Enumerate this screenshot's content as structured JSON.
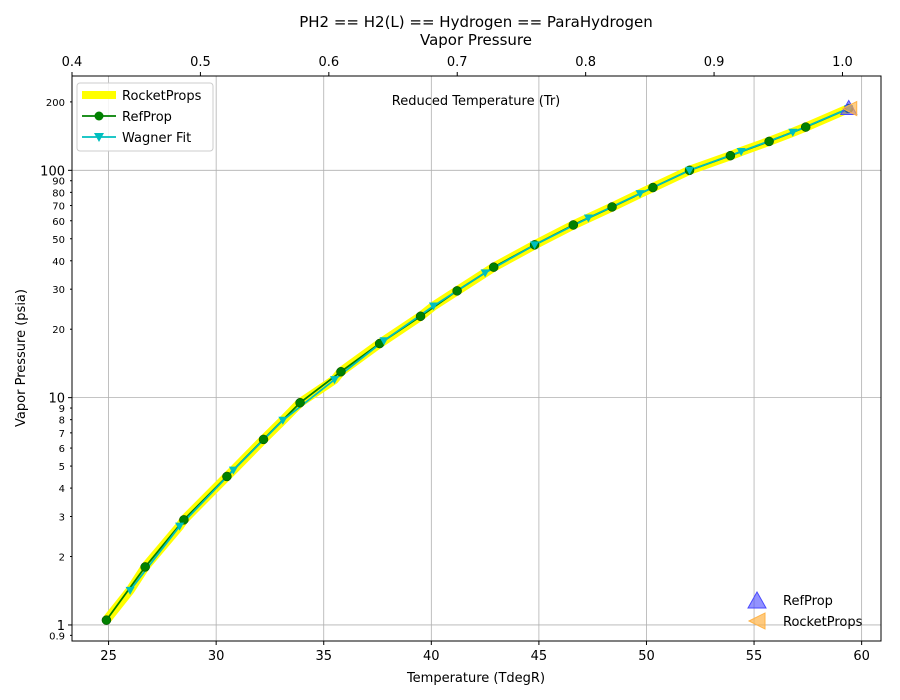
{
  "chart_data": {
    "type": "line",
    "title": "PH2 == H2(L) == Hydrogen == ParaHydrogen",
    "subtitle": "Vapor Pressure",
    "xlabel": "Temperature (TdegR)",
    "ylabel": "Vapor Pressure (psia)",
    "top_axis_label": "Reduced Temperature (Tr)",
    "xlim": [
      23.3,
      60.9
    ],
    "ylim": [
      0.85,
      260
    ],
    "yscale": "log",
    "top_axis_lim": [
      0.4,
      1.03
    ],
    "grid": true,
    "x_ticks": [
      {
        "v": 25,
        "label": "25"
      },
      {
        "v": 30,
        "label": "30"
      },
      {
        "v": 35,
        "label": "35"
      },
      {
        "v": 40,
        "label": "40"
      },
      {
        "v": 45,
        "label": "45"
      },
      {
        "v": 50,
        "label": "50"
      },
      {
        "v": 55,
        "label": "55"
      },
      {
        "v": 60,
        "label": "60"
      }
    ],
    "top_ticks": [
      {
        "v": 0.4,
        "label": "0.4"
      },
      {
        "v": 0.5,
        "label": "0.5"
      },
      {
        "v": 0.6,
        "label": "0.6"
      },
      {
        "v": 0.7,
        "label": "0.7"
      },
      {
        "v": 0.8,
        "label": "0.8"
      },
      {
        "v": 0.9,
        "label": "0.9"
      },
      {
        "v": 1.0,
        "label": "1.0"
      }
    ],
    "y_major_ticks": [
      {
        "v": 1,
        "label": "1"
      },
      {
        "v": 10,
        "label": "10"
      },
      {
        "v": 100,
        "label": "100"
      }
    ],
    "y_minor_ticks": [
      {
        "v": 0.9,
        "label": "0.9"
      },
      {
        "v": 2,
        "label": "2"
      },
      {
        "v": 3,
        "label": "3"
      },
      {
        "v": 4,
        "label": "4"
      },
      {
        "v": 5,
        "label": "5"
      },
      {
        "v": 6,
        "label": "6"
      },
      {
        "v": 7,
        "label": "7"
      },
      {
        "v": 8,
        "label": "8"
      },
      {
        "v": 9,
        "label": "9"
      },
      {
        "v": 20,
        "label": "20"
      },
      {
        "v": 30,
        "label": "30"
      },
      {
        "v": 40,
        "label": "40"
      },
      {
        "v": 50,
        "label": "50"
      },
      {
        "v": 60,
        "label": "60"
      },
      {
        "v": 70,
        "label": "70"
      },
      {
        "v": 80,
        "label": "80"
      },
      {
        "v": 90,
        "label": "90"
      },
      {
        "v": 200,
        "label": "200"
      }
    ],
    "series": [
      {
        "name": "RocketProps",
        "color": "#ffff00",
        "style": "thick-line",
        "x": [
          24.9,
          26.0,
          26.7,
          28.3,
          28.5,
          30.5,
          30.8,
          32.2,
          33.1,
          33.9,
          35.5,
          35.8,
          37.6,
          37.8,
          39.5,
          40.1,
          41.2,
          42.5,
          42.9,
          44.8,
          46.6,
          47.3,
          48.4,
          49.7,
          50.3,
          52.0,
          53.9,
          54.4,
          55.7,
          56.8,
          57.4,
          59.4
        ],
        "y": [
          1.05,
          1.42,
          1.8,
          2.72,
          2.9,
          4.5,
          4.8,
          6.55,
          7.95,
          9.5,
          12.0,
          13.0,
          17.3,
          17.8,
          22.8,
          25.3,
          29.5,
          35.4,
          37.5,
          47.0,
          57.5,
          61.7,
          69.0,
          79.0,
          84.0,
          100.0,
          116.0,
          121.0,
          134.0,
          147.0,
          155.0,
          187.0
        ]
      },
      {
        "name": "RefProp",
        "color": "#008000",
        "style": "line-circle",
        "x": [
          24.9,
          26.7,
          28.5,
          30.5,
          32.2,
          33.9,
          35.8,
          37.6,
          39.5,
          41.2,
          42.9,
          44.8,
          46.6,
          48.4,
          50.3,
          52.0,
          53.9,
          55.7,
          57.4,
          59.4
        ],
        "y": [
          1.05,
          1.8,
          2.9,
          4.5,
          6.55,
          9.5,
          13.0,
          17.3,
          22.8,
          29.5,
          37.5,
          47.0,
          57.5,
          69.0,
          84.0,
          100.0,
          116.0,
          134.0,
          155.0,
          187.0
        ]
      },
      {
        "name": "Wagner Fit",
        "color": "#00bfbf",
        "style": "line-triangle-down",
        "x": [
          26.0,
          28.3,
          30.8,
          33.1,
          35.5,
          37.8,
          40.1,
          42.5,
          44.8,
          47.3,
          49.7,
          52.0,
          54.4,
          56.8,
          59.4
        ],
        "y": [
          1.42,
          2.72,
          4.8,
          7.95,
          12.0,
          17.8,
          25.3,
          35.4,
          47.0,
          61.7,
          79.0,
          100.0,
          121.0,
          147.0,
          187.0
        ]
      }
    ],
    "critical_points": [
      {
        "name": "RefProp",
        "color": "#4a4aff",
        "marker": "triangle-up",
        "x": 59.4,
        "y": 187.0
      },
      {
        "name": "RocketProps",
        "color": "#ffb347",
        "marker": "triangle-left",
        "x": 59.4,
        "y": 187.0
      }
    ],
    "legend_upper": "top-left",
    "legend_lower": "bottom-right"
  }
}
